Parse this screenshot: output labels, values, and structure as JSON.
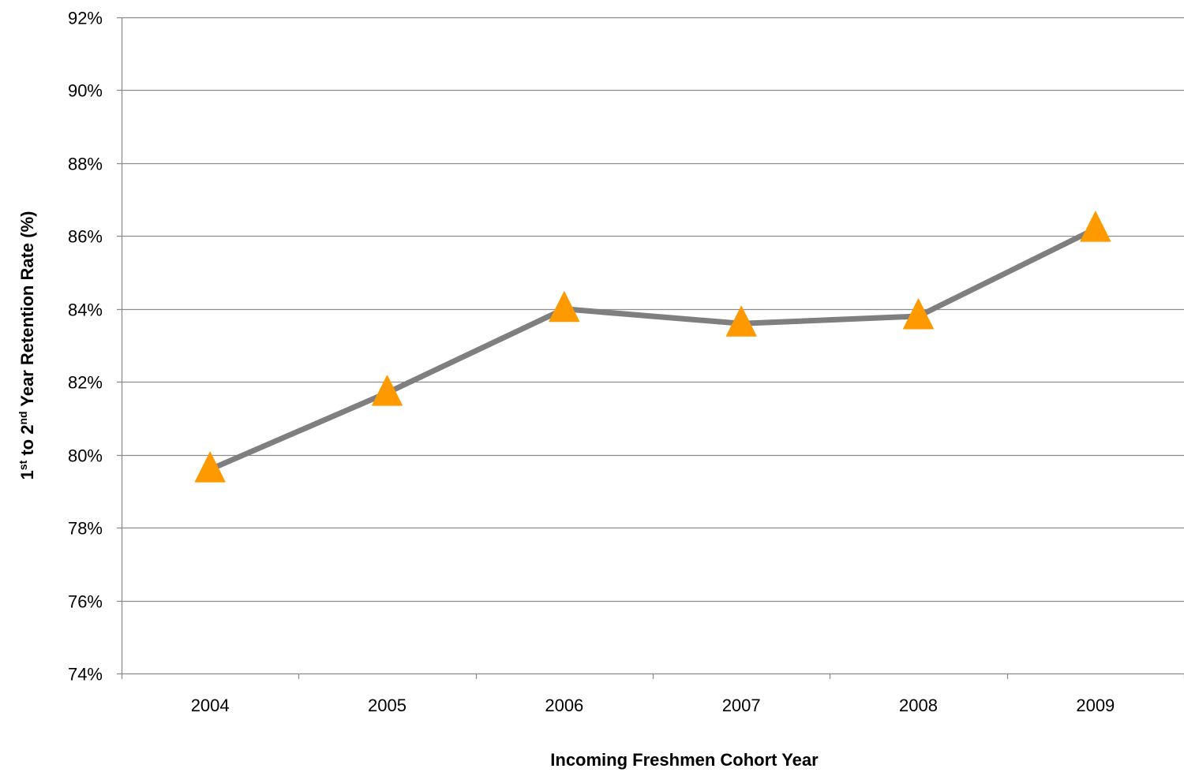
{
  "chart_data": {
    "type": "line",
    "title": "",
    "xlabel": "Incoming Freshmen Cohort Year",
    "ylabel": {
      "parts": [
        {
          "text": "1",
          "sup": false
        },
        {
          "text": "st",
          "sup": true
        },
        {
          "text": " to 2",
          "sup": false
        },
        {
          "text": "nd",
          "sup": true
        },
        {
          "text": " Year Retention Rate (%)",
          "sup": false
        }
      ]
    },
    "categories": [
      "2004",
      "2005",
      "2006",
      "2007",
      "2008",
      "2009"
    ],
    "series": [
      {
        "values": [
          79.6,
          81.7,
          84.0,
          83.6,
          83.8,
          86.2
        ],
        "line_color": "#7f7f7f",
        "marker": "triangle",
        "marker_color": "#ff9900"
      }
    ],
    "ylim": [
      74,
      92
    ],
    "ytick_step": 2,
    "ytick_labels": [
      "74%",
      "76%",
      "78%",
      "80%",
      "82%",
      "84%",
      "86%",
      "88%",
      "90%",
      "92%"
    ],
    "grid": true,
    "legend": "none"
  }
}
